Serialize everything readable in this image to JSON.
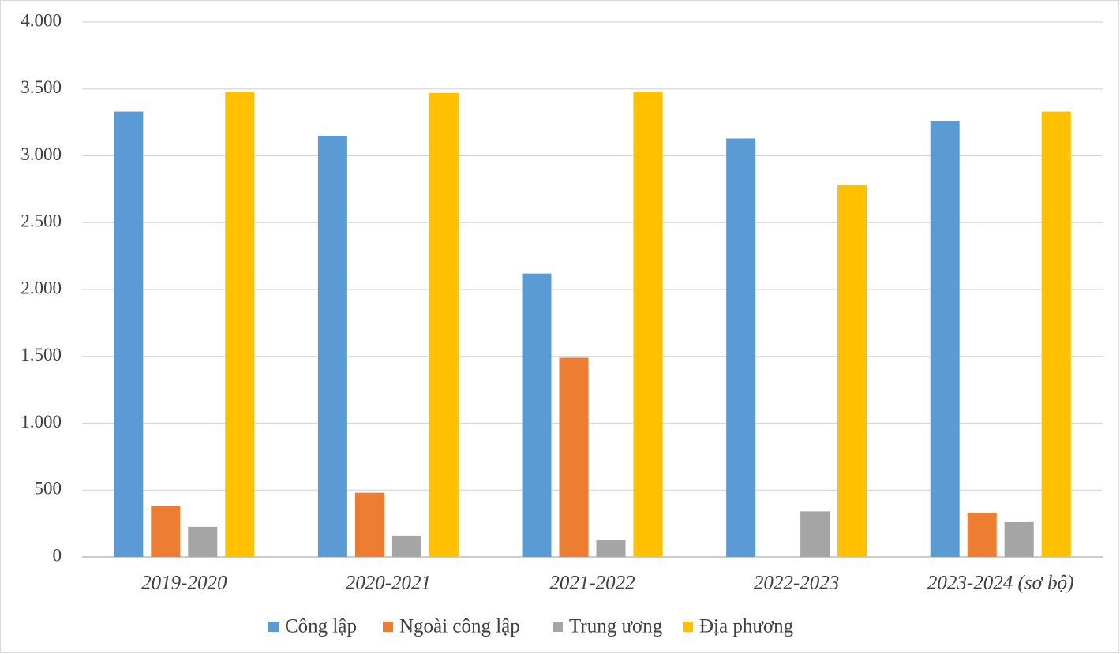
{
  "chart_data": {
    "type": "bar",
    "categories": [
      "2019-2020",
      "2020-2021",
      "2021-2022",
      "2022-2023",
      "2023-2024 (sơ bộ)"
    ],
    "series": [
      {
        "name": "Công lập",
        "color": "#5b9bd5",
        "values": [
          3330,
          3150,
          2120,
          3130,
          3260
        ]
      },
      {
        "name": "Ngoài công lập",
        "color": "#ed7d31",
        "values": [
          380,
          480,
          1490,
          null,
          330
        ]
      },
      {
        "name": "Trung ương",
        "color": "#a5a5a5",
        "values": [
          225,
          160,
          130,
          340,
          260
        ]
      },
      {
        "name": "Địa phương",
        "color": "#ffc000",
        "values": [
          3480,
          3470,
          3480,
          2780,
          3330
        ]
      }
    ],
    "ylim": [
      0,
      4000
    ],
    "yticks": [
      0,
      500,
      {
        "value": 1000,
        "label": "1.000"
      },
      {
        "value": 1500,
        "label": "1.500"
      },
      {
        "value": 2000,
        "label": "2.000"
      },
      {
        "value": 2500,
        "label": "2.500"
      },
      {
        "value": 3000,
        "label": "3.000"
      },
      {
        "value": 3500,
        "label": "3.500"
      },
      {
        "value": 4000,
        "label": "4.000"
      }
    ],
    "grid": true,
    "legend": "bottom"
  }
}
